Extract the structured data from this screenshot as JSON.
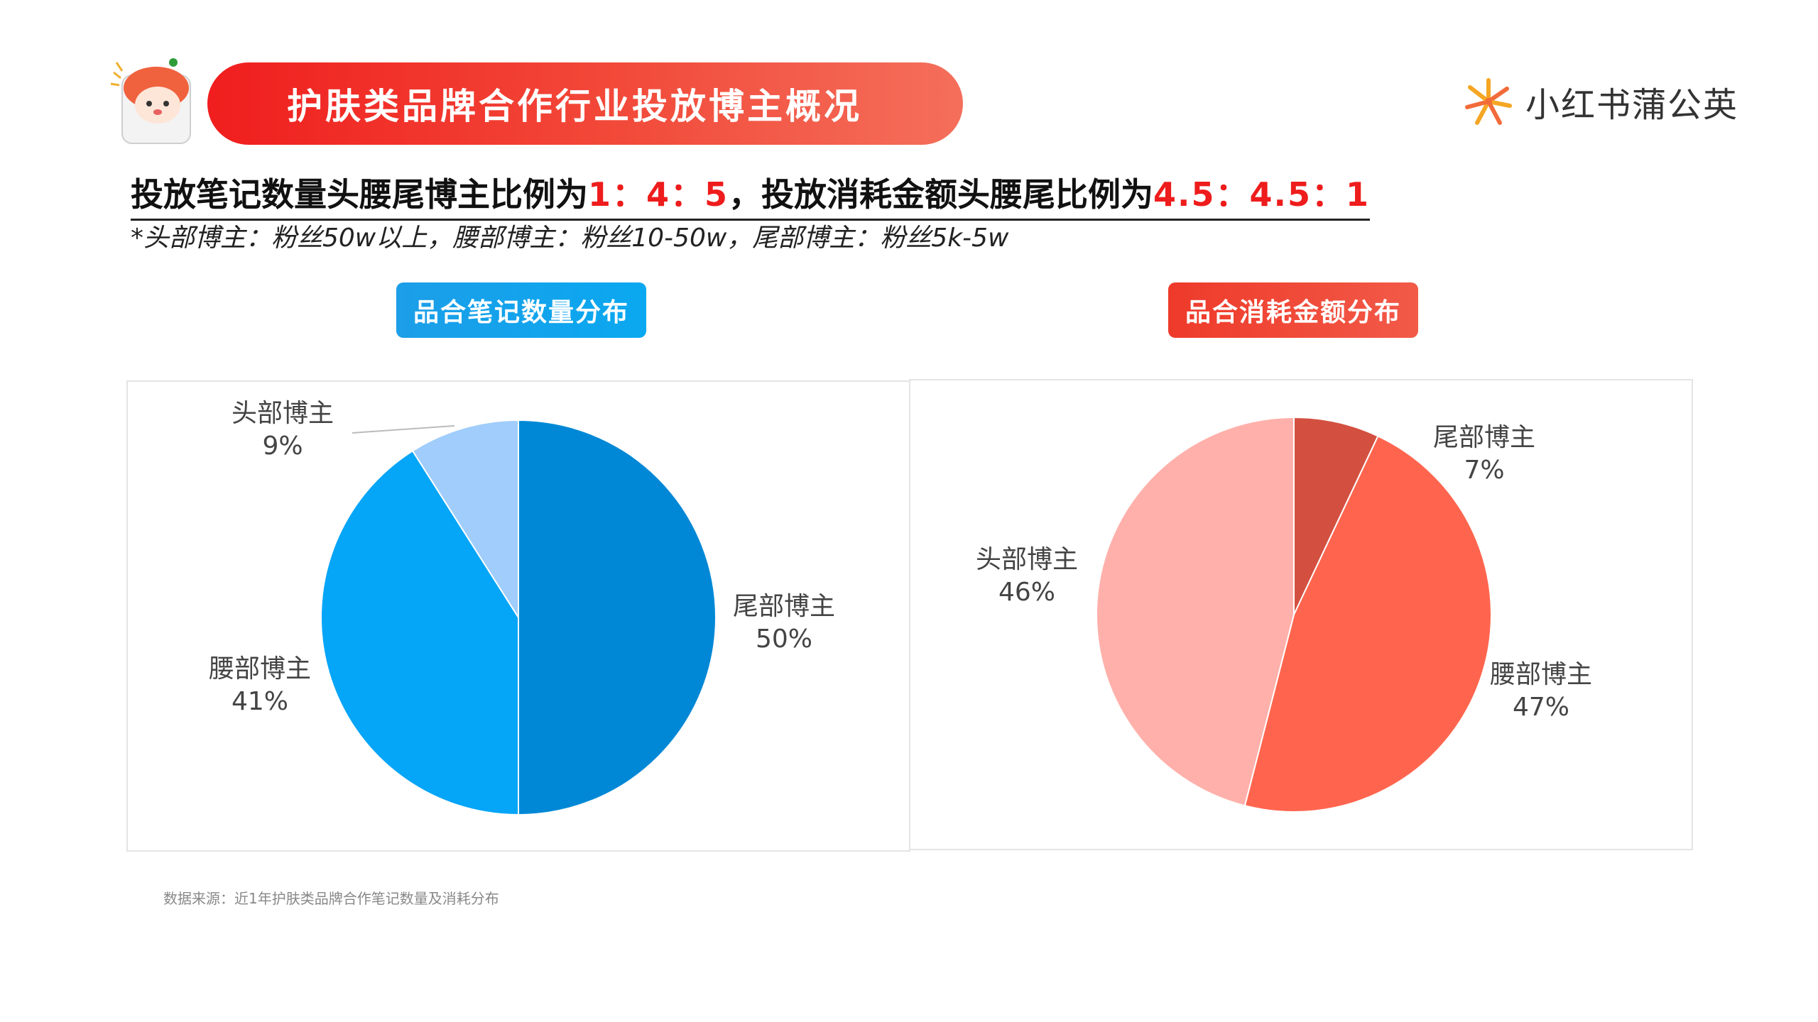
{
  "header": {
    "title": "护肤类品牌合作行业投放博主概况",
    "brand": "小红书蒲公英"
  },
  "headline": {
    "part1": "投放笔记数量头腰尾博主比例为",
    "ratio1": "1：4：5",
    "separator": "，",
    "part2": "投放消耗金额头腰尾比例为",
    "ratio2": "4.5：4.5：1"
  },
  "subnote": "*头部博主：粉丝50w以上，腰部博主：粉丝10-50w，尾部博主：粉丝5k-5w",
  "charts": {
    "left_title": "品合笔记数量分布",
    "right_title": "品合消耗金额分布"
  },
  "chart_data": [
    {
      "type": "pie",
      "title": "品合笔记数量分布",
      "categories": [
        "尾部博主",
        "腰部博主",
        "头部博主"
      ],
      "values": [
        50,
        41,
        9
      ],
      "value_labels": [
        "50%",
        "41%",
        "9%"
      ],
      "colors": [
        "#0088d6",
        "#05a5f7",
        "#a0cdfb"
      ]
    },
    {
      "type": "pie",
      "title": "品合消耗金额分布",
      "categories": [
        "尾部博主",
        "腰部博主",
        "头部博主"
      ],
      "values": [
        7,
        47,
        46
      ],
      "value_labels": [
        "7%",
        "47%",
        "46%"
      ],
      "colors": [
        "#d35040",
        "#ff654e",
        "#ffb0aa"
      ]
    }
  ],
  "source": "数据来源：近1年护肤类品牌合作笔记数量及消耗分布"
}
